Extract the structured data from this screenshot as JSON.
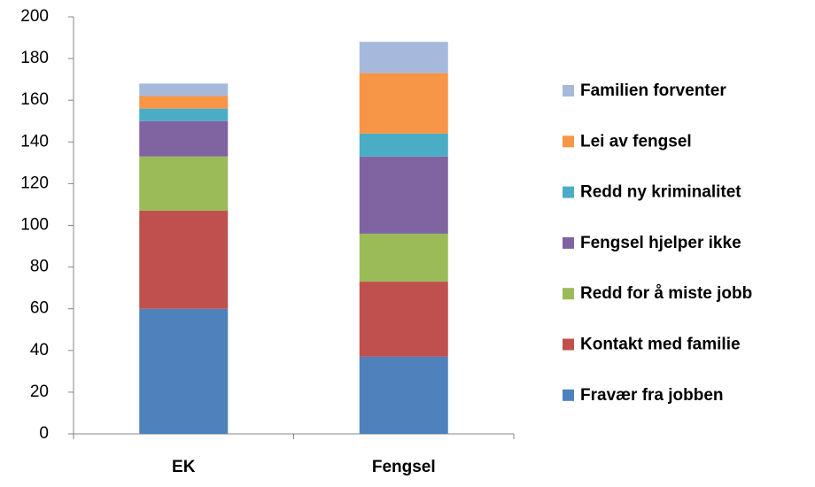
{
  "chart_data": {
    "type": "stacked_bar",
    "categories": [
      "EK",
      "Fengsel"
    ],
    "series": [
      {
        "name": "Fravær fra jobben",
        "color": "#4f81bd",
        "values": [
          60,
          37
        ]
      },
      {
        "name": "Kontakt med familie",
        "color": "#c0504d",
        "values": [
          47,
          36
        ]
      },
      {
        "name": "Redd for å miste jobb",
        "color": "#9bbb59",
        "values": [
          26,
          23
        ]
      },
      {
        "name": "Fengsel hjelper ikke",
        "color": "#8064a2",
        "values": [
          17,
          37
        ]
      },
      {
        "name": "Redd ny kriminalitet",
        "color": "#4bacc6",
        "values": [
          6,
          11
        ]
      },
      {
        "name": "Lei av fengsel",
        "color": "#f79646",
        "values": [
          6,
          29
        ]
      },
      {
        "name": "Familien forventer",
        "color": "#a6b9dc",
        "values": [
          6,
          15
        ]
      }
    ],
    "ylim": [
      0,
      200
    ],
    "yticks": [
      0,
      20,
      40,
      60,
      80,
      100,
      120,
      140,
      160,
      180,
      200
    ],
    "grid": false,
    "legend": "right"
  }
}
